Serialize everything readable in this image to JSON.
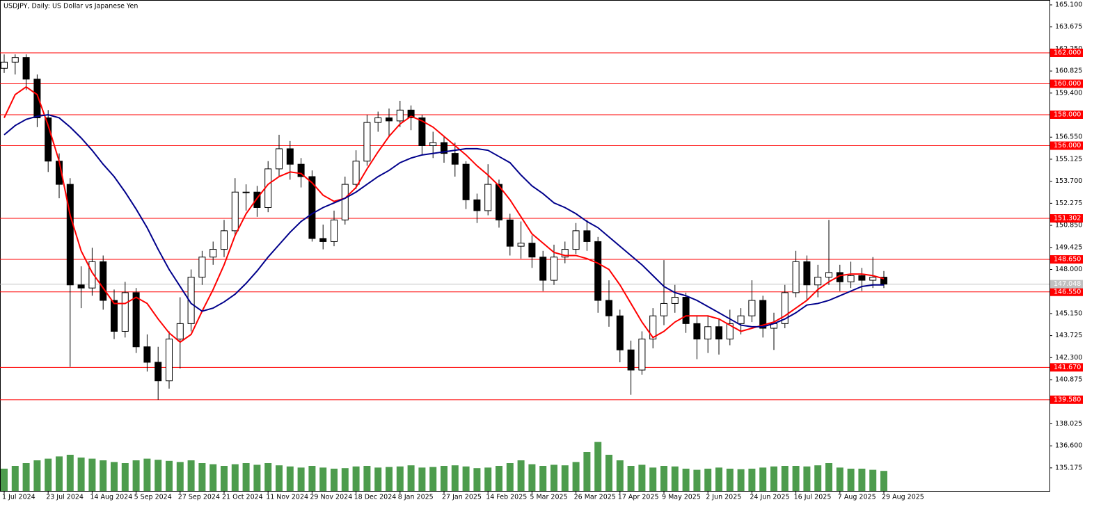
{
  "chart_data": {
    "type": "candlestick",
    "title": "USDJPY, Daily:  US Dollar vs Japanese Yen",
    "categories": [
      "1 Jul 2024",
      null,
      null,
      null,
      "23 Jul 2024",
      null,
      null,
      null,
      "14 Aug 2024",
      null,
      null,
      null,
      "5 Sep 2024",
      null,
      null,
      null,
      "27 Sep 2024",
      null,
      null,
      null,
      "21 Oct 2024",
      null,
      null,
      null,
      "11 Nov 2024",
      null,
      null,
      null,
      "29 Nov 2024",
      null,
      null,
      null,
      "18 Dec 2024",
      null,
      null,
      null,
      "8 Jan 2025",
      null,
      null,
      null,
      "27 Jan 2025",
      null,
      null,
      null,
      "14 Feb 2025",
      null,
      null,
      null,
      "5 Mar 2025",
      null,
      null,
      null,
      "26 Mar 2025",
      null,
      null,
      null,
      "17 Apr 2025",
      null,
      null,
      null,
      "9 May 2025",
      null,
      null,
      null,
      "2 Jun 2025",
      null,
      null,
      null,
      "24 Jun 2025",
      null,
      null,
      null,
      "16 Jul 2025",
      null,
      null,
      null,
      "7 Aug 2025",
      null,
      null,
      null,
      "29 Aug 2025"
    ],
    "open": [
      161.0,
      161.4,
      161.7,
      160.3,
      157.8,
      155.0,
      153.5,
      147.0,
      146.8,
      148.5,
      146.0,
      144.0,
      146.5,
      143.0,
      142.0,
      140.8,
      143.5,
      144.5,
      147.5,
      148.8,
      149.3,
      150.5,
      153.0,
      153.0,
      152.0,
      154.5,
      155.8,
      154.8,
      154.0,
      150.0,
      149.8,
      151.2,
      153.5,
      155.0,
      157.5,
      157.8,
      157.6,
      158.3,
      157.8,
      156.0,
      156.2,
      155.5,
      154.8,
      152.5,
      151.8,
      153.5,
      151.2,
      149.5,
      149.7,
      148.8,
      147.3,
      148.8,
      149.3,
      150.5,
      149.8,
      146.0,
      145.0,
      142.8,
      141.5,
      143.5,
      145.0,
      145.8,
      146.2,
      144.5,
      143.5,
      144.3,
      143.5,
      144.5,
      145.0,
      146.0,
      144.2,
      144.5,
      146.5,
      148.5,
      147.0,
      147.5,
      147.8,
      147.2,
      147.6,
      147.3,
      147.5
    ],
    "high": [
      161.9,
      161.9,
      161.9,
      160.6,
      158.3,
      155.5,
      153.9,
      148.2,
      149.4,
      148.9,
      146.7,
      147.2,
      146.8,
      143.8,
      143.0,
      144.0,
      146.2,
      148.0,
      149.2,
      149.8,
      151.2,
      153.9,
      153.5,
      153.4,
      155.0,
      156.7,
      156.3,
      155.2,
      154.4,
      150.9,
      151.8,
      154.0,
      155.7,
      158.0,
      158.2,
      158.4,
      158.9,
      158.6,
      158.0,
      156.9,
      156.6,
      156.2,
      155.0,
      152.9,
      154.8,
      153.8,
      151.6,
      151.1,
      150.2,
      149.2,
      149.6,
      149.8,
      151.0,
      151.2,
      150.1,
      147.3,
      145.4,
      143.4,
      144.0,
      145.5,
      148.6,
      147.0,
      146.5,
      145.0,
      145.0,
      144.8,
      145.4,
      145.5,
      147.3,
      146.3,
      145.2,
      147.0,
      149.2,
      148.9,
      148.3,
      151.2,
      148.3,
      148.5,
      148.1,
      148.8,
      147.9
    ],
    "low": [
      160.7,
      160.6,
      159.6,
      157.2,
      154.3,
      152.6,
      141.7,
      145.5,
      146.3,
      145.4,
      143.5,
      143.6,
      142.6,
      141.4,
      139.58,
      140.3,
      141.6,
      144.0,
      147.0,
      148.3,
      148.8,
      150.2,
      151.8,
      151.4,
      151.7,
      154.0,
      153.8,
      153.3,
      149.8,
      149.3,
      149.5,
      150.9,
      153.2,
      154.7,
      156.9,
      156.6,
      157.2,
      157.0,
      155.4,
      155.2,
      154.9,
      154.0,
      151.9,
      151.0,
      151.5,
      150.7,
      148.9,
      148.7,
      148.1,
      146.6,
      147.0,
      148.4,
      149.0,
      149.2,
      145.2,
      144.3,
      142.0,
      139.9,
      141.2,
      142.9,
      144.4,
      145.2,
      143.9,
      142.2,
      142.6,
      142.5,
      143.1,
      143.8,
      144.6,
      143.6,
      142.8,
      144.2,
      146.2,
      146.0,
      146.2,
      147.0,
      146.6,
      146.8,
      146.6,
      146.8,
      146.8
    ],
    "close": [
      161.4,
      161.7,
      160.3,
      157.8,
      155.0,
      153.5,
      147.0,
      146.8,
      148.5,
      146.0,
      144.0,
      146.5,
      143.0,
      142.0,
      140.8,
      143.5,
      144.5,
      147.5,
      148.8,
      149.3,
      150.5,
      153.0,
      153.0,
      152.0,
      154.5,
      155.8,
      154.8,
      154.0,
      150.0,
      149.8,
      151.2,
      153.5,
      155.0,
      157.5,
      157.8,
      157.6,
      158.3,
      157.8,
      156.0,
      156.2,
      155.5,
      154.8,
      152.5,
      151.8,
      153.5,
      151.2,
      149.5,
      149.7,
      148.8,
      147.3,
      148.8,
      149.3,
      150.5,
      149.8,
      146.0,
      145.0,
      142.8,
      141.5,
      143.5,
      145.0,
      145.8,
      146.2,
      144.5,
      143.5,
      144.3,
      143.5,
      144.5,
      145.0,
      146.0,
      144.2,
      144.5,
      146.5,
      148.5,
      147.0,
      147.5,
      147.8,
      147.2,
      147.6,
      147.3,
      147.5,
      147.05
    ],
    "volume": [
      40,
      45,
      50,
      55,
      58,
      62,
      65,
      60,
      58,
      55,
      52,
      50,
      55,
      58,
      56,
      54,
      52,
      55,
      50,
      48,
      45,
      48,
      50,
      47,
      50,
      46,
      44,
      42,
      45,
      42,
      40,
      41,
      44,
      45,
      42,
      43,
      44,
      46,
      42,
      43,
      45,
      46,
      44,
      41,
      42,
      45,
      50,
      55,
      48,
      45,
      47,
      46,
      52,
      70,
      88,
      65,
      55,
      45,
      47,
      42,
      45,
      44,
      40,
      38,
      40,
      42,
      40,
      39,
      40,
      42,
      44,
      45,
      45,
      44,
      46,
      50,
      42,
      40,
      40,
      38,
      36
    ],
    "volume_lim": [
      0,
      100
    ],
    "volume_color": "#2e8b2e",
    "moving_averages": [
      {
        "color": "#ff0000",
        "values": [
          157.8,
          159.3,
          159.8,
          159.3,
          157.3,
          155.0,
          151.5,
          149.2,
          147.8,
          146.8,
          145.8,
          145.8,
          146.2,
          145.8,
          144.8,
          143.9,
          143.3,
          143.8,
          145.3,
          146.7,
          148.3,
          150.2,
          151.6,
          152.6,
          153.5,
          154.0,
          154.3,
          154.2,
          153.6,
          152.8,
          152.4,
          152.6,
          153.3,
          154.5,
          155.6,
          156.6,
          157.4,
          157.9,
          157.6,
          157.2,
          156.6,
          156.0,
          155.4,
          154.7,
          154.1,
          153.4,
          152.5,
          151.4,
          150.3,
          149.7,
          149.1,
          148.9,
          148.9,
          148.7,
          148.4,
          148.0,
          147.0,
          145.8,
          144.6,
          143.6,
          144.0,
          144.6,
          145.0,
          145.0,
          145.0,
          144.8,
          144.4,
          144.0,
          144.2,
          144.4,
          144.6,
          145.0,
          145.5,
          146.0,
          146.7,
          147.2,
          147.6,
          147.7,
          147.7,
          147.6,
          147.4
        ]
      },
      {
        "color": "#00008b",
        "values": [
          156.7,
          157.3,
          157.7,
          157.9,
          158.0,
          157.8,
          157.2,
          156.5,
          155.7,
          154.8,
          154.0,
          153.0,
          151.9,
          150.7,
          149.3,
          148.0,
          146.9,
          145.8,
          145.3,
          145.5,
          145.9,
          146.4,
          147.1,
          147.9,
          148.8,
          149.6,
          150.4,
          151.1,
          151.6,
          152.0,
          152.3,
          152.6,
          153.0,
          153.5,
          154.0,
          154.4,
          154.9,
          155.2,
          155.4,
          155.5,
          155.6,
          155.7,
          155.8,
          155.8,
          155.7,
          155.3,
          154.9,
          154.1,
          153.4,
          152.9,
          152.3,
          152.0,
          151.6,
          151.1,
          150.7,
          150.1,
          149.5,
          148.9,
          148.3,
          147.6,
          146.9,
          146.5,
          146.3,
          146.0,
          145.6,
          145.2,
          144.8,
          144.4,
          144.3,
          144.3,
          144.5,
          144.8,
          145.2,
          145.7,
          145.8,
          146.0,
          146.3,
          146.6,
          146.9,
          147.0,
          147.0
        ]
      }
    ],
    "levels": [
      {
        "value": 162,
        "label": "162.000"
      },
      {
        "value": 160,
        "label": "160.000"
      },
      {
        "value": 158,
        "label": "158.000"
      },
      {
        "value": 156,
        "label": "156.000"
      },
      {
        "value": 151.302,
        "label": "151.302"
      },
      {
        "value": 148.65,
        "label": "148.650"
      },
      {
        "value": 146.55,
        "label": "146.550"
      },
      {
        "value": 141.67,
        "label": "141.670"
      },
      {
        "value": 139.58,
        "label": "139.580"
      }
    ],
    "level_color": "#ff0000",
    "current_price": {
      "value": 147.048,
      "label": "147.048"
    },
    "current_price_color": "#c0c0c0",
    "ylim": [
      133.685,
      165.415
    ],
    "yticks": [
      {
        "value": 165.1,
        "label": "165.100"
      },
      163.675,
      {
        "value": 162.25,
        "label": "162.250"
      },
      160.825,
      {
        "value": 159.4,
        "label": "159.400"
      },
      {
        "value": 156.55,
        "label": "156.550"
      },
      155.125,
      {
        "value": 153.7,
        "label": "153.700"
      },
      152.275,
      {
        "value": 150.85,
        "label": "150.850"
      },
      149.425,
      {
        "value": 148,
        "label": "148.000"
      },
      {
        "value": 145.15,
        "label": "145.150"
      },
      143.725,
      {
        "value": 142.3,
        "label": "142.300"
      },
      140.875,
      138.025,
      {
        "value": 136.6,
        "label": "136.600"
      },
      135.175
    ]
  }
}
